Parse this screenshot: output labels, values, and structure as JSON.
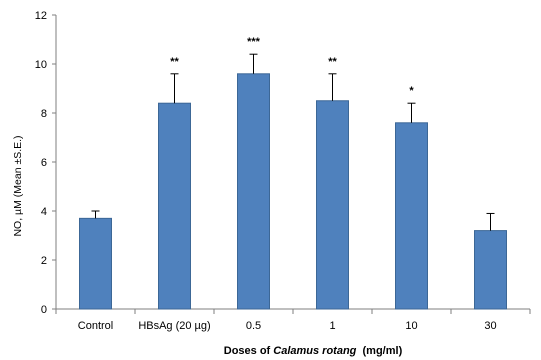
{
  "chart_data": {
    "type": "bar",
    "categories": [
      "Control",
      "HBsAg (20 µg)",
      "0.5",
      "1",
      "10",
      "30"
    ],
    "values": [
      3.7,
      8.4,
      9.6,
      8.5,
      7.6,
      3.2
    ],
    "errors": [
      0.3,
      1.2,
      0.8,
      1.1,
      0.8,
      0.7
    ],
    "significance": [
      "",
      "**",
      "***",
      "**",
      "*",
      ""
    ],
    "ylim": [
      0,
      12
    ],
    "yticks": [
      0,
      2,
      4,
      6,
      8,
      10,
      12
    ],
    "ylabel": "NO, µM (Mean ±S.E.)",
    "xlabel_prefix": "Doses of ",
    "xlabel_italic": "Calamus rotang",
    "xlabel_suffix": "  (mg/ml)",
    "bar_color": "#4f81bd",
    "bar_edge_color": "#3c6796",
    "grid": false
  }
}
